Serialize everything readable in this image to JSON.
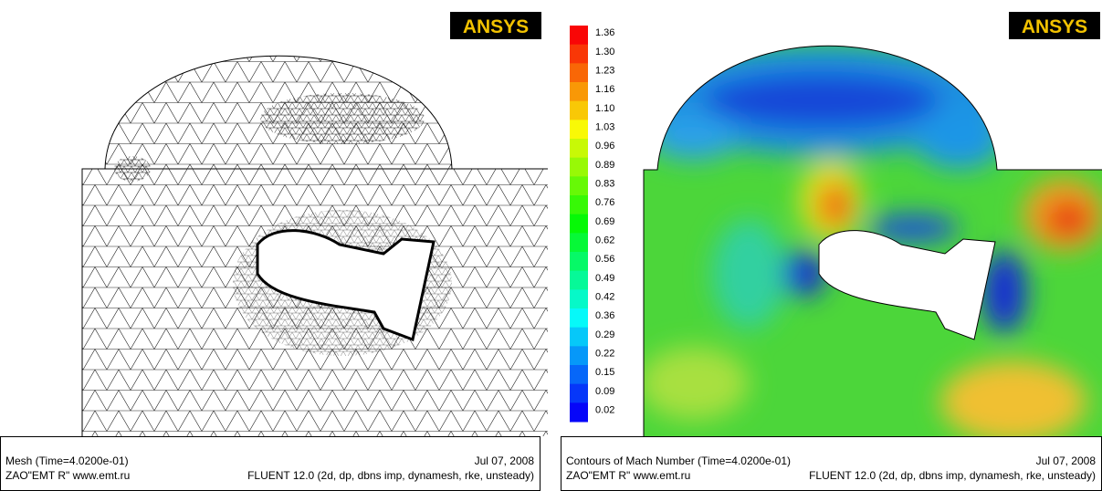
{
  "left_panel": {
    "logo": "ANSYS",
    "footer": {
      "title": "Mesh  (Time=4.0200e-01)",
      "date": "Jul 07, 2008",
      "credit": "ZAO\"EMT R\" www.emt.ru",
      "solver": "FLUENT 12.0 (2d, dp, dbns imp, dynamesh, rke, unsteady)"
    }
  },
  "right_panel": {
    "logo": "ANSYS",
    "colorbar": {
      "labels": [
        "1.36",
        "1.30",
        "1.23",
        "1.16",
        "1.10",
        "1.03",
        "0.96",
        "0.89",
        "0.83",
        "0.76",
        "0.69",
        "0.62",
        "0.56",
        "0.49",
        "0.42",
        "0.36",
        "0.29",
        "0.22",
        "0.15",
        "0.09",
        "0.02"
      ]
    },
    "footer": {
      "title": "Contours of Mach Number  (Time=4.0200e-01)",
      "date": "Jul 07, 2008",
      "credit": "ZAO\"EMT R\" www.emt.ru",
      "solver": "FLUENT 12.0 (2d, dp, dbns imp, dynamesh, rke, unsteady)"
    }
  }
}
